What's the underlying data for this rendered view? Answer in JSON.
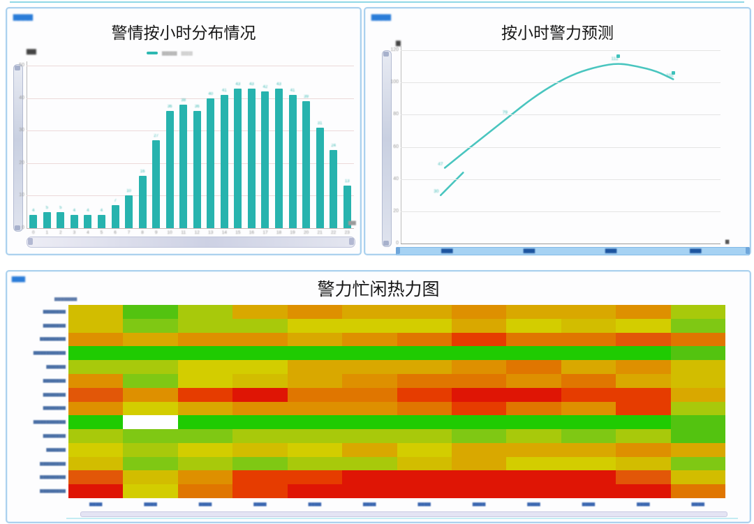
{
  "page": {
    "bg": "#ffffff",
    "top_rule_color": "#8fd8e6",
    "panel_border": "#abd1ee",
    "accent_teal": "#27b3ae",
    "tag_color": "#2a7cd8"
  },
  "panels": {
    "incidents": {
      "tag_mask": "▆▆▆▆",
      "title": "警情按小时分布情况",
      "legend_marker_color": "#2db8b2",
      "legend_mask": "▆▆▆▆",
      "legend_mask2": "▆▆▆",
      "y_axis_name_mask": "▆▆",
      "x_unit_mask": "▆▆"
    },
    "forecast": {
      "tag_mask": "▆▆▆▆",
      "title": "按小时警力预测",
      "y_axis_name_mask": "▆",
      "x_unit_mask": "▆",
      "x_slider_label_masks": [
        "▆▆▆",
        "▆▆▆",
        "▆▆▆",
        "▆▆▆"
      ]
    },
    "heatmap": {
      "tag_mask": "▆▆▆",
      "title": "警力忙闲热力图",
      "legend_mask": "▆▆▆▆▆▆▆",
      "row_label_masks": [
        "▆▆▆▆▆▆▆",
        "▆▆▆▆▆▆▆",
        "▆▆▆▆▆▆▆▆",
        "▆▆▆▆▆▆▆▆▆▆",
        "▆▆▆▆▆▆",
        "▆▆▆▆▆▆▆",
        "▆▆▆▆▆▆▆",
        "▆▆▆▆▆▆▆",
        "▆▆▆▆▆▆▆▆▆▆",
        "▆▆▆▆▆▆▆",
        "▆▆▆▆▆▆",
        "▆▆▆▆▆▆▆▆",
        "▆▆▆▆▆▆▆▆",
        "▆▆▆▆▆▆▆▆"
      ],
      "col_label_masks": [
        "▆▆▆▆",
        "▆▆▆▆",
        "▆▆▆▆",
        "▆▆▆▆",
        "▆▆▆▆",
        "▆▆▆▆",
        "▆▆▆▆",
        "▆▆▆▆",
        "▆▆▆▆",
        "▆▆▆▆",
        "▆▆▆▆",
        "▆▆▆▆"
      ]
    }
  },
  "chart_data": [
    {
      "type": "bar",
      "title": "警情按小时分布情况",
      "categories": [
        "0",
        "1",
        "2",
        "3",
        "4",
        "5",
        "6",
        "7",
        "8",
        "9",
        "10",
        "11",
        "12",
        "13",
        "14",
        "15",
        "16",
        "17",
        "18",
        "19",
        "20",
        "21",
        "22",
        "23"
      ],
      "values": [
        4,
        5,
        5,
        4,
        4,
        4,
        7,
        10,
        16,
        27,
        36,
        38,
        36,
        40,
        41,
        43,
        43,
        42,
        43,
        41,
        39,
        31,
        24,
        13
      ],
      "color": "#27b3ae",
      "xlabel": "",
      "ylabel": "",
      "ylim": [
        0,
        50
      ],
      "yticks": [
        0,
        10,
        20,
        30,
        40,
        50
      ],
      "grid": true,
      "gridline_color": "#ecd9d9",
      "legend_position": "top"
    },
    {
      "type": "line",
      "title": "按小时警力预测",
      "color": "#49c5bf",
      "ylim": [
        0,
        120
      ],
      "yticks": [
        0,
        20,
        40,
        60,
        80,
        100,
        120
      ],
      "grid": true,
      "gridline_color": "#e4e4e4",
      "series": [
        {
          "name": "forecast-curve",
          "x_frac": [
            0.138,
            0.2,
            0.27,
            0.34,
            0.41,
            0.48,
            0.55,
            0.62,
            0.68,
            0.74,
            0.8,
            0.852
          ],
          "values": [
            47,
            57,
            68,
            79,
            90,
            99,
            106,
            110,
            112,
            110,
            107,
            102
          ],
          "labeled_points": [
            0,
            3,
            8,
            11
          ],
          "marker_points": [
            8,
            11
          ]
        },
        {
          "name": "short-segment",
          "x_frac": [
            0.125,
            0.16,
            0.195
          ],
          "values": [
            30,
            37,
            44
          ],
          "labeled_points": [
            0
          ],
          "marker_points": []
        }
      ]
    },
    {
      "type": "heatmap",
      "title": "警力忙闲热力图",
      "rows": 14,
      "cols": 12,
      "legend_position": "top-left",
      "cells": [
        [
          "#d2bd00",
          "#53c310",
          "#a8c90b",
          "#d9a800",
          "#de9000",
          "#d9a800",
          "#d9a800",
          "#de9000",
          "#d9a800",
          "#d9a800",
          "#de9000",
          "#a8c90b"
        ],
        [
          "#d2bd00",
          "#7fc814",
          "#a8c90b",
          "#a8c90b",
          "#d3cd00",
          "#d3cd00",
          "#d3cd00",
          "#d9a800",
          "#d3cd00",
          "#d2bd00",
          "#d3cd00",
          "#7fc814"
        ],
        [
          "#de9000",
          "#d9a800",
          "#de9000",
          "#de9000",
          "#d9a800",
          "#de9000",
          "#e07600",
          "#e63c00",
          "#e07600",
          "#e07600",
          "#e25708",
          "#e07600"
        ],
        [
          "#1fcb02",
          "#1fcb02",
          "#1fcb02",
          "#1fcb02",
          "#1fcb02",
          "#1fcb02",
          "#1fcb02",
          "#1fcb02",
          "#1fcb02",
          "#1fcb02",
          "#1fcb02",
          "#53c310"
        ],
        [
          "#a8c90b",
          "#a8c90b",
          "#d3cd00",
          "#d3cd00",
          "#d9a800",
          "#d9a800",
          "#d9a800",
          "#de9000",
          "#e07600",
          "#d9a800",
          "#de9000",
          "#d2bd00"
        ],
        [
          "#de9000",
          "#7fc814",
          "#d3cd00",
          "#d2bd00",
          "#d9a800",
          "#de9000",
          "#e07600",
          "#e07600",
          "#de9000",
          "#e07600",
          "#d9a800",
          "#d2bd00"
        ],
        [
          "#e25708",
          "#de9000",
          "#e63c00",
          "#df1505",
          "#e07600",
          "#e07600",
          "#e63c00",
          "#df1505",
          "#df1505",
          "#e63c00",
          "#e63c00",
          "#d9a800"
        ],
        [
          "#de9000",
          "#d3cd00",
          "#d9a800",
          "#de9000",
          "#de9000",
          "#de9000",
          "#e07600",
          "#e63c00",
          "#e07600",
          "#de9000",
          "#e63c00",
          "#a8c90b"
        ],
        [
          "#1fcb02",
          "#ffffff",
          "#1fcb02",
          "#1fcb02",
          "#1fcb02",
          "#1fcb02",
          "#1fcb02",
          "#1fcb02",
          "#1fcb02",
          "#1fcb02",
          "#1fcb02",
          "#53c310"
        ],
        [
          "#a8c90b",
          "#7fc814",
          "#7fc814",
          "#a8c90b",
          "#a8c90b",
          "#a8c90b",
          "#a8c90b",
          "#7fc814",
          "#a8c90b",
          "#7fc814",
          "#a8c90b",
          "#53c310"
        ],
        [
          "#d3cd00",
          "#a8c90b",
          "#d3cd00",
          "#d2bd00",
          "#d3cd00",
          "#d9a800",
          "#d3cd00",
          "#d9a800",
          "#d9a800",
          "#d9a800",
          "#de9000",
          "#d9a800"
        ],
        [
          "#d2bd00",
          "#7fc814",
          "#a8c90b",
          "#7fc814",
          "#a8c90b",
          "#a8c90b",
          "#d2bd00",
          "#d9a800",
          "#d3cd00",
          "#d3cd00",
          "#d2bd00",
          "#7fc814"
        ],
        [
          "#e25708",
          "#d2bd00",
          "#de9000",
          "#e63c00",
          "#e63c00",
          "#df1505",
          "#df1505",
          "#df1505",
          "#df1505",
          "#df1505",
          "#e25708",
          "#d2bd00"
        ],
        [
          "#df1505",
          "#d3cd00",
          "#e07600",
          "#e63c00",
          "#df1505",
          "#df1505",
          "#df1505",
          "#df1505",
          "#df1505",
          "#df1505",
          "#df1505",
          "#e07600"
        ]
      ]
    }
  ]
}
